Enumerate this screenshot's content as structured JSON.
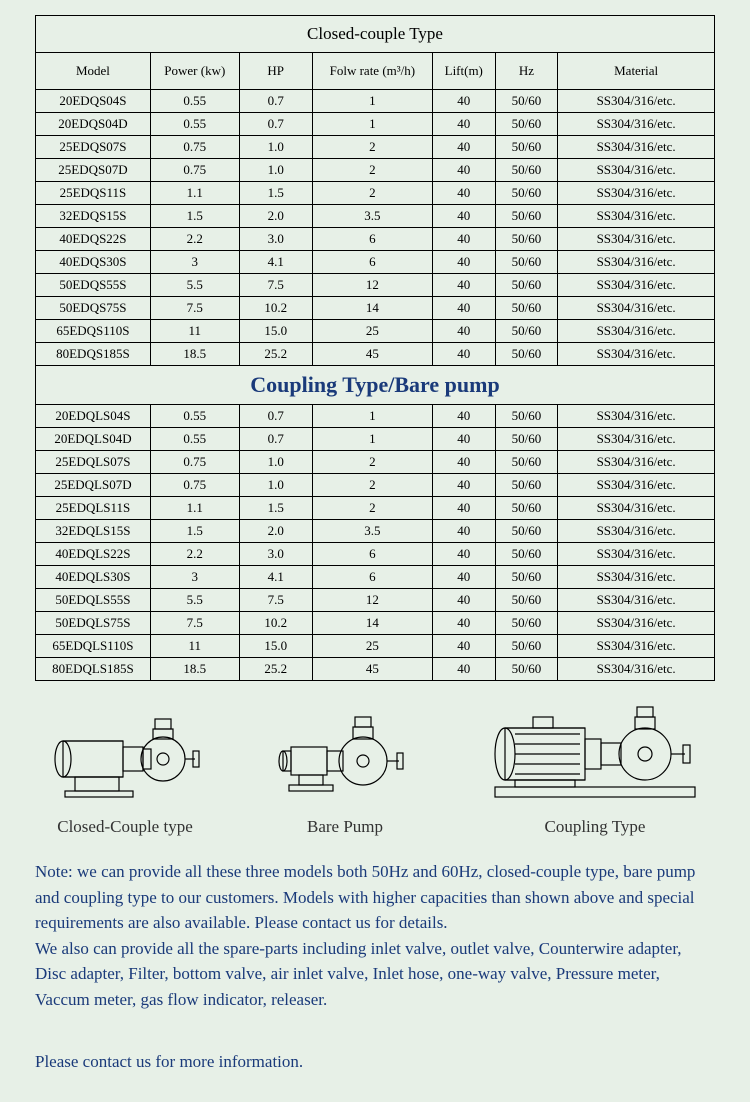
{
  "table1": {
    "title": "Closed-couple Type",
    "headers": [
      "Model",
      "Power (kw)",
      "HP",
      "Folw rate (m³/h)",
      "Lift(m)",
      "Hz",
      "Material"
    ],
    "rows": [
      [
        "20EDQS04S",
        "0.55",
        "0.7",
        "1",
        "40",
        "50/60",
        "SS304/316/etc."
      ],
      [
        "20EDQS04D",
        "0.55",
        "0.7",
        "1",
        "40",
        "50/60",
        "SS304/316/etc."
      ],
      [
        "25EDQS07S",
        "0.75",
        "1.0",
        "2",
        "40",
        "50/60",
        "SS304/316/etc."
      ],
      [
        "25EDQS07D",
        "0.75",
        "1.0",
        "2",
        "40",
        "50/60",
        "SS304/316/etc."
      ],
      [
        "25EDQS11S",
        "1.1",
        "1.5",
        "2",
        "40",
        "50/60",
        "SS304/316/etc."
      ],
      [
        "32EDQS15S",
        "1.5",
        "2.0",
        "3.5",
        "40",
        "50/60",
        "SS304/316/etc."
      ],
      [
        "40EDQS22S",
        "2.2",
        "3.0",
        "6",
        "40",
        "50/60",
        "SS304/316/etc."
      ],
      [
        "40EDQS30S",
        "3",
        "4.1",
        "6",
        "40",
        "50/60",
        "SS304/316/etc."
      ],
      [
        "50EDQS55S",
        "5.5",
        "7.5",
        "12",
        "40",
        "50/60",
        "SS304/316/etc."
      ],
      [
        "50EDQS75S",
        "7.5",
        "10.2",
        "14",
        "40",
        "50/60",
        "SS304/316/etc."
      ],
      [
        "65EDQS110S",
        "11",
        "15.0",
        "25",
        "40",
        "50/60",
        "SS304/316/etc."
      ],
      [
        "80EDQS185S",
        "18.5",
        "25.2",
        "45",
        "40",
        "50/60",
        "SS304/316/etc."
      ]
    ]
  },
  "table2": {
    "title": "Coupling Type/Bare pump",
    "rows": [
      [
        "20EDQLS04S",
        "0.55",
        "0.7",
        "1",
        "40",
        "50/60",
        "SS304/316/etc."
      ],
      [
        "20EDQLS04D",
        "0.55",
        "0.7",
        "1",
        "40",
        "50/60",
        "SS304/316/etc."
      ],
      [
        "25EDQLS07S",
        "0.75",
        "1.0",
        "2",
        "40",
        "50/60",
        "SS304/316/etc."
      ],
      [
        "25EDQLS07D",
        "0.75",
        "1.0",
        "2",
        "40",
        "50/60",
        "SS304/316/etc."
      ],
      [
        "25EDQLS11S",
        "1.1",
        "1.5",
        "2",
        "40",
        "50/60",
        "SS304/316/etc."
      ],
      [
        "32EDQLS15S",
        "1.5",
        "2.0",
        "3.5",
        "40",
        "50/60",
        "SS304/316/etc."
      ],
      [
        "40EDQLS22S",
        "2.2",
        "3.0",
        "6",
        "40",
        "50/60",
        "SS304/316/etc."
      ],
      [
        "40EDQLS30S",
        "3",
        "4.1",
        "6",
        "40",
        "50/60",
        "SS304/316/etc."
      ],
      [
        "50EDQLS55S",
        "5.5",
        "7.5",
        "12",
        "40",
        "50/60",
        "SS304/316/etc."
      ],
      [
        "50EDQLS75S",
        "7.5",
        "10.2",
        "14",
        "40",
        "50/60",
        "SS304/316/etc."
      ],
      [
        "65EDQLS110S",
        "11",
        "15.0",
        "25",
        "40",
        "50/60",
        "SS304/316/etc."
      ],
      [
        "80EDQLS185S",
        "18.5",
        "25.2",
        "45",
        "40",
        "50/60",
        "SS304/316/etc."
      ]
    ]
  },
  "images": {
    "label1": "Closed-Couple type",
    "label2": "Bare Pump",
    "label3": "Coupling Type"
  },
  "note": "Note: we can provide all these three models both 50Hz and 60Hz, closed-couple type, bare pump and coupling type to our customers. Models with higher capacities than shown above and special requirements are also available. Please contact us for details.\nWe also can provide all the spare-parts including inlet valve, outlet valve, Counterwire adapter, Disc adapter, Filter, bottom valve, air inlet valve, Inlet hose, one-way valve, Pressure meter, Vaccum meter, gas flow indicator, releaser.",
  "contact": "Please contact us for more information.",
  "colors": {
    "background": "#e7f0e7",
    "text_blue": "#1a3a7a",
    "border": "#000000"
  }
}
